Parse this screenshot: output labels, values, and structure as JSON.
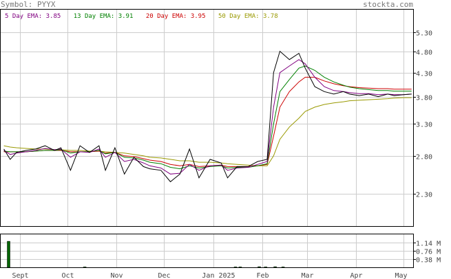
{
  "header": {
    "symbol": "Symbol: PYYX",
    "site": "stockta.com"
  },
  "legend": [
    {
      "label": "5 Day EMA: 3.85",
      "color": "#800080"
    },
    {
      "label": "13 Day EMA: 3.91",
      "color": "#008000"
    },
    {
      "label": "20 Day EMA: 3.95",
      "color": "#cc0000"
    },
    {
      "label": "50 Day EMA: 3.78",
      "color": "#999900"
    }
  ],
  "chart_data": [
    {
      "type": "line",
      "title": "",
      "yscale": "log",
      "ylim": [
        1.95,
        5.95
      ],
      "yticks": [
        "5.30",
        "4.80",
        "4.30",
        "3.80",
        "3.30",
        "2.80",
        "2.30"
      ],
      "xticks": [
        "Sept",
        "Oct",
        "Nov",
        "Dec",
        "Jan 2025",
        "Feb",
        "Mar",
        "Apr",
        "May"
      ],
      "x": [
        "2024-08-22",
        "2024-08-26",
        "2024-08-30",
        "2024-09-05",
        "2024-09-11",
        "2024-09-17",
        "2024-09-23",
        "2024-09-27",
        "2024-10-03",
        "2024-10-09",
        "2024-10-15",
        "2024-10-21",
        "2024-10-25",
        "2024-10-31",
        "2024-11-06",
        "2024-11-12",
        "2024-11-18",
        "2024-11-22",
        "2024-11-29",
        "2024-12-05",
        "2024-12-11",
        "2024-12-17",
        "2024-12-23",
        "2024-12-30",
        "2025-01-06",
        "2025-01-10",
        "2025-01-16",
        "2025-01-23",
        "2025-01-29",
        "2025-02-04",
        "2025-02-08",
        "2025-02-12",
        "2025-02-18",
        "2025-02-24",
        "2025-02-28",
        "2025-03-06",
        "2025-03-12",
        "2025-03-18",
        "2025-03-24",
        "2025-03-28",
        "2025-04-03",
        "2025-04-09",
        "2025-04-15",
        "2025-04-21",
        "2025-04-25",
        "2025-05-01",
        "2025-05-06"
      ],
      "series": [
        {
          "key": "price",
          "color": "#000000",
          "values": [
            2.9,
            2.75,
            2.85,
            2.88,
            2.9,
            2.95,
            2.88,
            2.92,
            2.6,
            2.95,
            2.85,
            2.95,
            2.6,
            2.92,
            2.55,
            2.78,
            2.65,
            2.62,
            2.6,
            2.45,
            2.55,
            2.9,
            2.5,
            2.75,
            2.7,
            2.5,
            2.65,
            2.65,
            2.72,
            2.75,
            4.3,
            4.8,
            4.6,
            4.75,
            4.4,
            4.0,
            3.9,
            3.85,
            3.9,
            3.85,
            3.82,
            3.85,
            3.8,
            3.85,
            3.82,
            3.84,
            3.85
          ]
        },
        {
          "key": "ema5",
          "color": "#800080",
          "values": [
            2.88,
            2.82,
            2.84,
            2.86,
            2.88,
            2.91,
            2.89,
            2.9,
            2.78,
            2.86,
            2.85,
            2.9,
            2.78,
            2.85,
            2.72,
            2.75,
            2.7,
            2.66,
            2.63,
            2.55,
            2.56,
            2.68,
            2.6,
            2.66,
            2.67,
            2.6,
            2.63,
            2.64,
            2.68,
            2.72,
            3.6,
            4.3,
            4.45,
            4.6,
            4.5,
            4.2,
            4.0,
            3.92,
            3.9,
            3.88,
            3.86,
            3.86,
            3.84,
            3.85,
            3.84,
            3.84,
            3.85
          ]
        },
        {
          "key": "ema13",
          "color": "#008000",
          "values": [
            2.87,
            2.86,
            2.86,
            2.86,
            2.87,
            2.88,
            2.88,
            2.89,
            2.84,
            2.86,
            2.86,
            2.88,
            2.83,
            2.85,
            2.78,
            2.77,
            2.74,
            2.71,
            2.69,
            2.64,
            2.62,
            2.66,
            2.63,
            2.65,
            2.66,
            2.63,
            2.64,
            2.64,
            2.66,
            2.69,
            3.3,
            3.9,
            4.15,
            4.4,
            4.45,
            4.35,
            4.2,
            4.1,
            4.03,
            3.99,
            3.96,
            3.94,
            3.92,
            3.92,
            3.91,
            3.91,
            3.91
          ]
        },
        {
          "key": "ema20",
          "color": "#cc0000",
          "values": [
            2.86,
            2.86,
            2.86,
            2.86,
            2.87,
            2.88,
            2.88,
            2.88,
            2.86,
            2.86,
            2.86,
            2.87,
            2.84,
            2.85,
            2.8,
            2.79,
            2.76,
            2.74,
            2.72,
            2.68,
            2.66,
            2.68,
            2.65,
            2.66,
            2.67,
            2.65,
            2.65,
            2.65,
            2.66,
            2.68,
            3.1,
            3.6,
            3.9,
            4.1,
            4.2,
            4.2,
            4.12,
            4.06,
            4.02,
            4.0,
            3.98,
            3.97,
            3.96,
            3.96,
            3.95,
            3.95,
            3.95
          ]
        },
        {
          "key": "ema50",
          "color": "#999900",
          "values": [
            2.95,
            2.93,
            2.92,
            2.91,
            2.9,
            2.9,
            2.89,
            2.89,
            2.88,
            2.88,
            2.87,
            2.87,
            2.86,
            2.85,
            2.84,
            2.82,
            2.8,
            2.78,
            2.77,
            2.75,
            2.73,
            2.73,
            2.71,
            2.71,
            2.7,
            2.69,
            2.68,
            2.67,
            2.66,
            2.66,
            2.8,
            3.05,
            3.25,
            3.4,
            3.52,
            3.6,
            3.65,
            3.68,
            3.7,
            3.72,
            3.73,
            3.74,
            3.75,
            3.76,
            3.77,
            3.78,
            3.78
          ]
        }
      ]
    },
    {
      "type": "bar",
      "title": "",
      "yticks": [
        "1.14 M",
        "0.76 M",
        "0.38 M"
      ],
      "ylim": [
        0,
        1.52
      ],
      "x": [
        "2024-08-25",
        "2024-10-12",
        "2025-01-15",
        "2025-01-18",
        "2025-01-30",
        "2025-02-03",
        "2025-02-09",
        "2025-02-14"
      ],
      "values": [
        1.2,
        0.02,
        0.02,
        0.02,
        0.03,
        0.02,
        0.03,
        0.02
      ]
    }
  ],
  "colors": {
    "frame": "#000000",
    "grid": "#cccccc",
    "volume_bar": "#006600"
  }
}
